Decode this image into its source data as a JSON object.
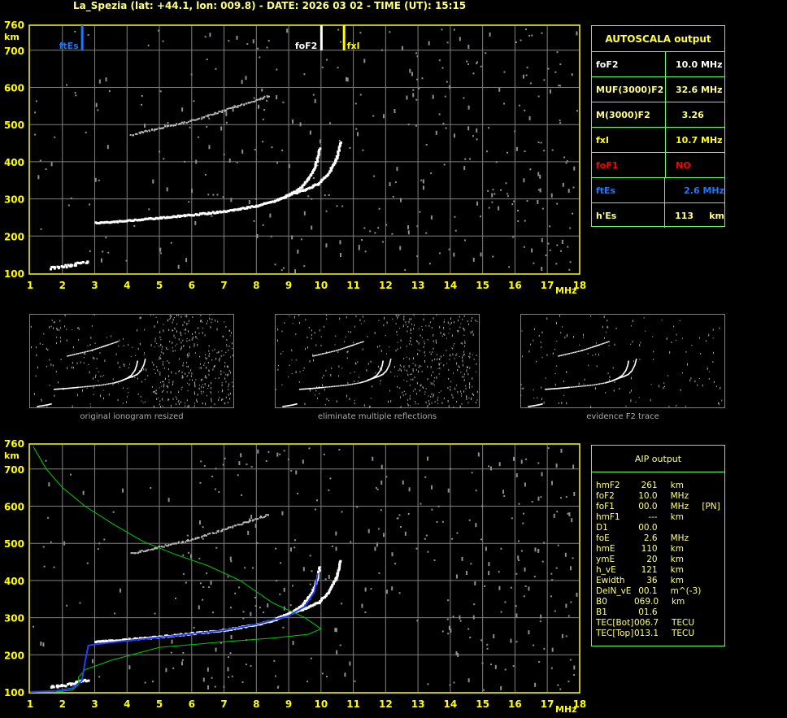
{
  "title": "La_Spezia (lat: +44.1, lon: 009.8) - DATE: 2026 03 02 - TIME (UT): 15:15",
  "colors": {
    "axis": "#ffff00",
    "grid": "#808080",
    "ftEs": "#1e78ff",
    "foF2": "#ffffff",
    "fxI": "#ffff00",
    "profile": "#00cc00",
    "aip_trace": "#2040ff",
    "table_border": "#60ff60"
  },
  "chart_data": [
    {
      "type": "scatter",
      "name_hint": "",
      "xlabel": "MHz",
      "ylabel": "km",
      "xlim": [
        1,
        18
      ],
      "ylim": [
        100,
        760
      ],
      "xticks": [
        "1",
        "2",
        "3",
        "4",
        "5",
        "6",
        "7",
        "8",
        "9",
        "10",
        "11",
        "12",
        "13",
        "14",
        "15",
        "16",
        "17",
        "18"
      ],
      "yticks": [
        "100",
        "200",
        "300",
        "400",
        "500",
        "600",
        "700",
        "760"
      ],
      "grid": true,
      "markers": [
        {
          "label": "ftEs",
          "x": 2.6,
          "color": "#1e78ff"
        },
        {
          "label": "foF2",
          "x": 10.0,
          "color": "#ffffff"
        },
        {
          "label": "fxI",
          "x": 10.7,
          "color": "#ffff00"
        }
      ],
      "traces": {
        "es": [
          [
            1.6,
            114
          ],
          [
            2,
            119
          ],
          [
            2.4,
            125
          ],
          [
            2.8,
            133
          ]
        ],
        "f2_o": [
          [
            3.0,
            236
          ],
          [
            3.5,
            239
          ],
          [
            4,
            242
          ],
          [
            4.5,
            246
          ],
          [
            5,
            250
          ],
          [
            6,
            258
          ],
          [
            7,
            267
          ],
          [
            8,
            282
          ],
          [
            8.5,
            294
          ],
          [
            9,
            312
          ],
          [
            9.4,
            335
          ],
          [
            9.7,
            370
          ],
          [
            9.85,
            405
          ],
          [
            9.93,
            440
          ]
        ],
        "f2_x": [
          [
            8.6,
            298
          ],
          [
            9,
            312
          ],
          [
            9.5,
            326
          ],
          [
            9.9,
            342
          ],
          [
            10.2,
            368
          ],
          [
            10.45,
            410
          ],
          [
            10.58,
            455
          ]
        ],
        "second_hop": [
          [
            4.1,
            472
          ],
          [
            5,
            490
          ],
          [
            6,
            510
          ],
          [
            6.9,
            535
          ],
          [
            7.5,
            552
          ],
          [
            8.4,
            578
          ]
        ]
      }
    },
    {
      "type": "line",
      "xlabel": "MHz",
      "ylabel": "km",
      "xlim": [
        1,
        18
      ],
      "ylim": [
        100,
        760
      ],
      "series": [
        {
          "color": "#00cc00",
          "points": [
            [
              1.1,
              760
            ],
            [
              1.5,
              700
            ],
            [
              2,
              650
            ],
            [
              2.7,
              600
            ],
            [
              3.6,
              550
            ],
            [
              4.5,
              505
            ],
            [
              5.5,
              470
            ],
            [
              6.5,
              440
            ],
            [
              7.5,
              400
            ],
            [
              8.5,
              340
            ],
            [
              9.5,
              300
            ],
            [
              10,
              270
            ],
            [
              9.6,
              255
            ],
            [
              8.5,
              245
            ],
            [
              7,
              235
            ],
            [
              5,
              220
            ],
            [
              3.5,
              185
            ],
            [
              2.7,
              160
            ],
            [
              2.5,
              140
            ],
            [
              2.5,
              120
            ],
            [
              2.3,
              105
            ],
            [
              1.8,
              100
            ]
          ]
        },
        {
          "color": "#2040ff",
          "points": [
            [
              1,
              100
            ],
            [
              1.8,
              103
            ],
            [
              2.3,
              110
            ],
            [
              2.6,
              130
            ],
            [
              2.7,
              180
            ],
            [
              2.8,
              225
            ],
            [
              3,
              228
            ],
            [
              4,
              238
            ],
            [
              5,
              247
            ],
            [
              6,
              256
            ],
            [
              7,
              266
            ],
            [
              8,
              282
            ],
            [
              9,
              305
            ],
            [
              9.5,
              330
            ],
            [
              9.8,
              370
            ],
            [
              9.9,
              420
            ]
          ]
        }
      ]
    }
  ],
  "autoscala": {
    "header": "AUTOSCALA output",
    "rows": [
      {
        "k": "foF2",
        "v": "10.0 MHz",
        "color": "#ffffff"
      },
      {
        "k": "MUF(3000)F2",
        "v": "32.6 MHz",
        "color": "#ffff80"
      },
      {
        "k": "M(3000)F2",
        "v": "  3.26",
        "color": "#ffff80"
      },
      {
        "k": "fxI",
        "v": "10.7 MHz",
        "color": "#ffff00"
      },
      {
        "k": "foF1",
        "v": "NO",
        "color": "#ff0000"
      },
      {
        "k": "ftEs",
        "v": "   2.6 MHz",
        "color": "#1e78ff"
      },
      {
        "k": "h'Es",
        "v": "113     km",
        "color": "#ffff80"
      }
    ]
  },
  "thumbs": [
    "original ionogram resized",
    "eliminate multiple reflections",
    "evidence F2 trace"
  ],
  "aip": {
    "header": "AIP output",
    "rows": [
      [
        "hmF2",
        "261",
        "km",
        ""
      ],
      [
        "foF2",
        "10.0",
        "MHz",
        ""
      ],
      [
        "foF1",
        "00.0",
        "MHz",
        "[PN]"
      ],
      [
        "hmF1",
        "---",
        "km",
        ""
      ],
      [
        "D1",
        "00.0",
        "",
        ""
      ],
      [
        "foE",
        "2.6",
        "MHz",
        ""
      ],
      [
        "hmE",
        "110",
        "km",
        ""
      ],
      [
        "ymE",
        "20",
        "km",
        ""
      ],
      [
        "h_vE",
        "121",
        "km",
        ""
      ],
      [
        "Ewidth",
        "36",
        "km",
        ""
      ],
      [
        "DelN_vE",
        "00.1",
        "m^(-3)",
        ""
      ],
      [
        "B0",
        "069.0",
        "km",
        ""
      ],
      [
        "B1",
        "01.6",
        "",
        ""
      ],
      [
        "TEC[Bot]",
        "006.7",
        "TECU",
        ""
      ],
      [
        "TEC[Top]",
        "013.1",
        "TECU",
        ""
      ]
    ]
  }
}
